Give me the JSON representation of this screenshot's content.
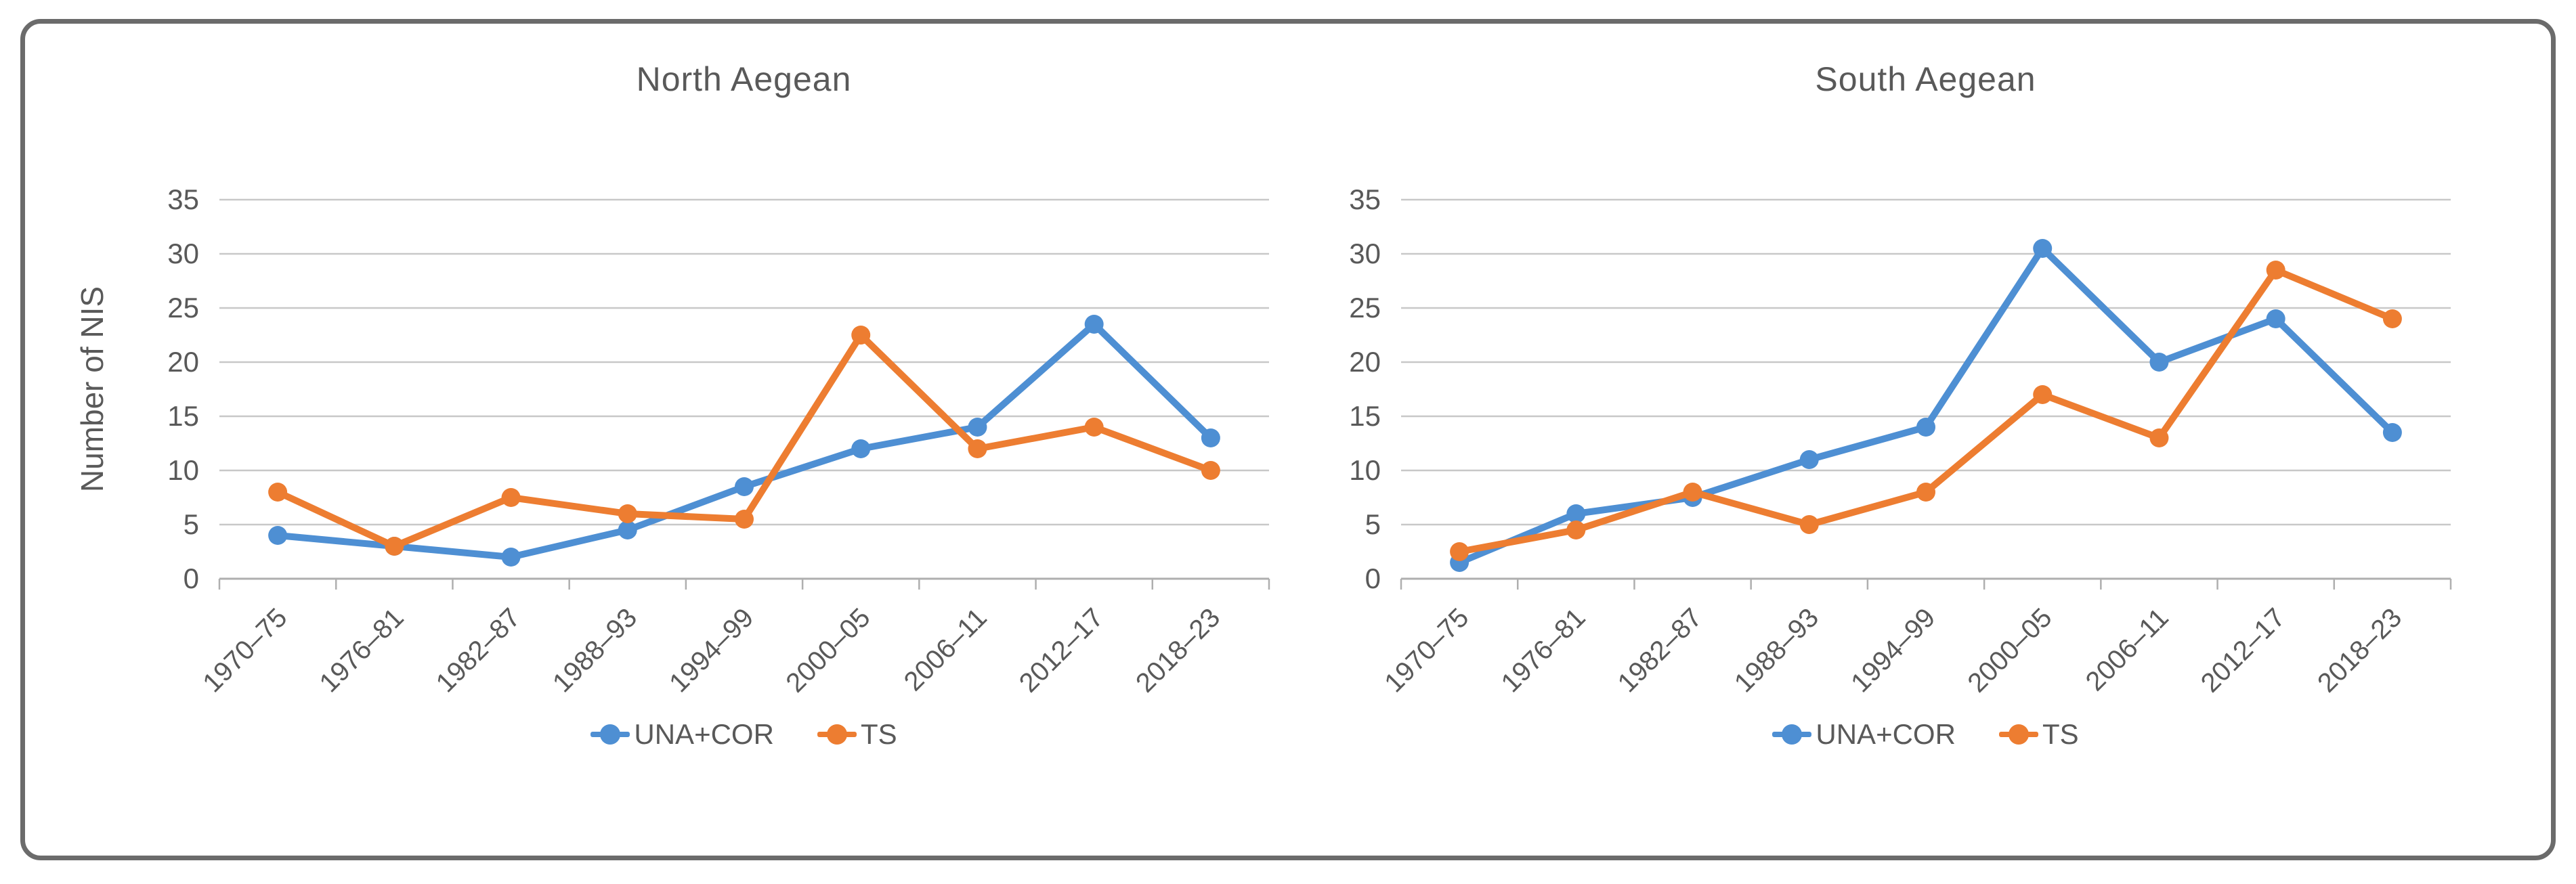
{
  "chart_data": [
    {
      "type": "line",
      "title": "North Aegean",
      "ylabel": "Number of NIS",
      "xlabel": "",
      "categories": [
        "1970–75",
        "1976–81",
        "1982–87",
        "1988–93",
        "1994–99",
        "2000–05",
        "2006–11",
        "2012–17",
        "2018–23"
      ],
      "series": [
        {
          "name": "UNA+COR",
          "color": "#4E8FD3",
          "values": [
            4,
            3,
            2,
            4.5,
            8.5,
            12,
            14,
            23.5,
            13
          ]
        },
        {
          "name": "TS",
          "color": "#ED7D31",
          "values": [
            8,
            3,
            7.5,
            6,
            5.5,
            22.5,
            12,
            14,
            10
          ]
        }
      ],
      "ylim": [
        0,
        35
      ],
      "yticks": [
        0,
        5,
        10,
        15,
        20,
        25,
        30,
        35
      ],
      "grid": true,
      "legend_position": "bottom"
    },
    {
      "type": "line",
      "title": "South Aegean",
      "ylabel": "",
      "xlabel": "",
      "categories": [
        "1970–75",
        "1976–81",
        "1982–87",
        "1988–93",
        "1994–99",
        "2000–05",
        "2006–11",
        "2012–17",
        "2018–23"
      ],
      "series": [
        {
          "name": "UNA+COR",
          "color": "#4E8FD3",
          "values": [
            1.5,
            6,
            7.5,
            11,
            14,
            30.5,
            20,
            24,
            13.5
          ]
        },
        {
          "name": "TS",
          "color": "#ED7D31",
          "values": [
            2.5,
            4.5,
            8,
            5,
            8,
            17,
            13,
            28.5,
            24
          ]
        }
      ],
      "ylim": [
        0,
        35
      ],
      "yticks": [
        0,
        5,
        10,
        15,
        20,
        25,
        30,
        35
      ],
      "grid": true,
      "legend_position": "bottom"
    }
  ],
  "styles": {
    "text_color": "#595959",
    "gridline_color": "#C8C8C8",
    "axis_color": "#AFAFAF",
    "frame_border_color": "#6B6B6B",
    "background": "#FFFFFF"
  }
}
